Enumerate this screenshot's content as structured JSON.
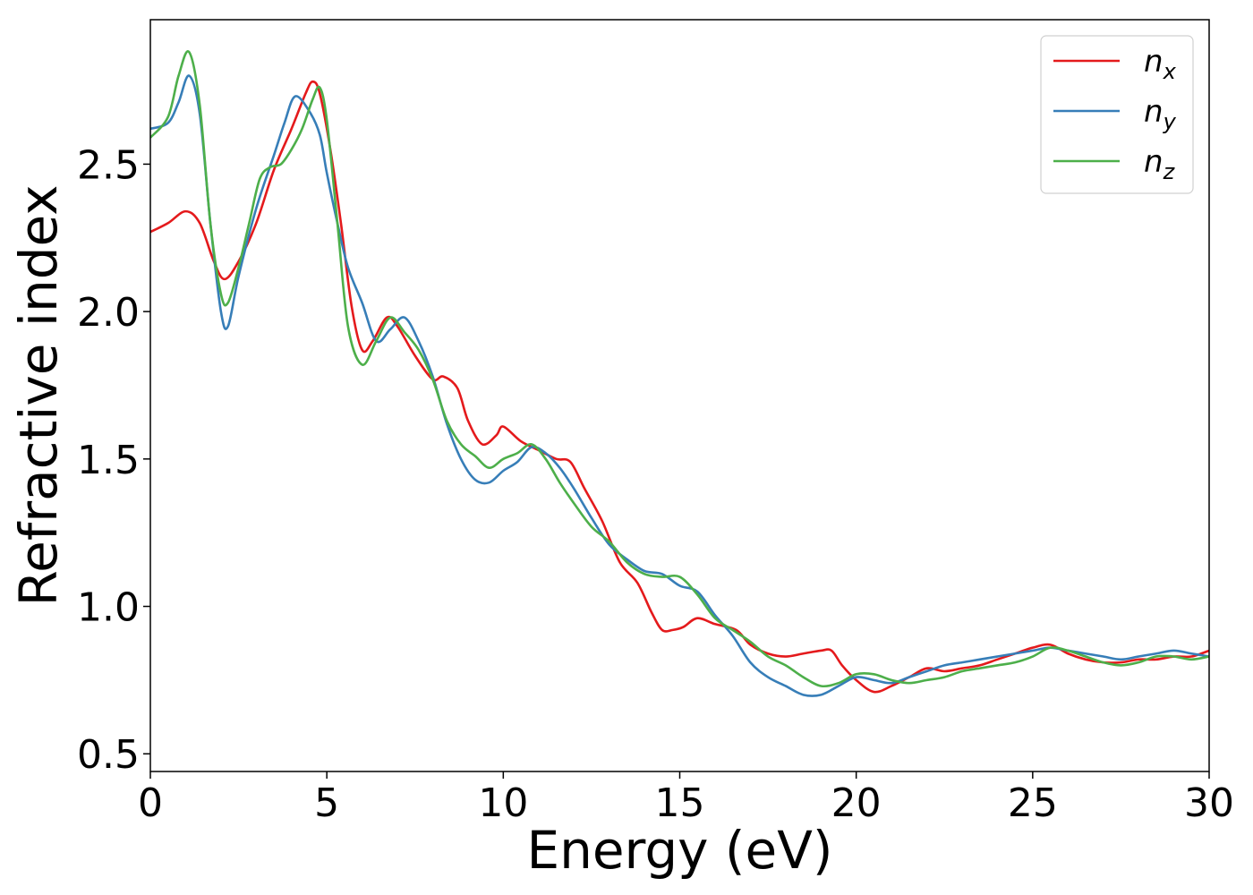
{
  "chart_data": {
    "type": "line",
    "xlabel": "Energy (eV)",
    "ylabel": "Refractive index",
    "xlim": [
      0,
      30
    ],
    "ylim": [
      0.44,
      2.99
    ],
    "xticks": [
      0,
      5,
      10,
      15,
      20,
      25,
      30
    ],
    "yticks": [
      0.5,
      1.0,
      1.5,
      2.0,
      2.5
    ],
    "xtick_labels": [
      "0",
      "5",
      "10",
      "15",
      "20",
      "25",
      "30"
    ],
    "ytick_labels": [
      "0.5",
      "1.0",
      "1.5",
      "2.0",
      "2.5"
    ],
    "grid": false,
    "legend_position": "top-right",
    "series": [
      {
        "name": "n",
        "subscript": "x",
        "color": "#e41a1c",
        "x": [
          0,
          0.5,
          1.0,
          1.4,
          1.8,
          2.1,
          2.5,
          3.0,
          3.5,
          4.0,
          4.4,
          4.6,
          4.8,
          5.1,
          5.4,
          5.7,
          6.0,
          6.3,
          6.7,
          7.0,
          7.5,
          8.0,
          8.3,
          8.7,
          9.0,
          9.4,
          9.8,
          10.0,
          10.5,
          11.0,
          11.5,
          11.9,
          12.3,
          12.8,
          13.3,
          13.8,
          14.2,
          14.5,
          14.8,
          15.1,
          15.5,
          16.0,
          16.6,
          17.0,
          17.5,
          18.0,
          18.5,
          19.0,
          19.3,
          19.6,
          20.0,
          20.5,
          21.0,
          21.5,
          22.0,
          22.5,
          23.0,
          23.5,
          24.0,
          24.5,
          25.0,
          25.5,
          26.0,
          26.5,
          27.0,
          27.5,
          28.0,
          28.5,
          29.0,
          29.5,
          30.0
        ],
        "y": [
          2.27,
          2.3,
          2.34,
          2.3,
          2.17,
          2.11,
          2.17,
          2.3,
          2.48,
          2.62,
          2.74,
          2.78,
          2.74,
          2.55,
          2.3,
          2.02,
          1.87,
          1.9,
          1.98,
          1.95,
          1.85,
          1.77,
          1.78,
          1.74,
          1.63,
          1.55,
          1.58,
          1.61,
          1.56,
          1.53,
          1.5,
          1.49,
          1.4,
          1.29,
          1.15,
          1.08,
          0.98,
          0.92,
          0.92,
          0.93,
          0.96,
          0.94,
          0.92,
          0.87,
          0.84,
          0.83,
          0.84,
          0.85,
          0.85,
          0.8,
          0.75,
          0.71,
          0.73,
          0.76,
          0.79,
          0.78,
          0.79,
          0.8,
          0.82,
          0.84,
          0.86,
          0.87,
          0.84,
          0.82,
          0.81,
          0.81,
          0.82,
          0.82,
          0.83,
          0.83,
          0.85
        ]
      },
      {
        "name": "n",
        "subscript": "y",
        "color": "#377eb8",
        "x": [
          0,
          0.5,
          0.8,
          1.1,
          1.4,
          1.7,
          2.0,
          2.2,
          2.5,
          3.0,
          3.5,
          3.8,
          4.1,
          4.5,
          4.8,
          5.0,
          5.3,
          5.6,
          6.0,
          6.4,
          6.8,
          7.2,
          7.6,
          8.0,
          8.4,
          8.8,
          9.2,
          9.6,
          10.0,
          10.4,
          10.8,
          11.2,
          11.6,
          12.0,
          12.5,
          13.0,
          13.5,
          14.0,
          14.5,
          15.0,
          15.5,
          16.0,
          16.5,
          17.0,
          17.5,
          18.0,
          18.5,
          19.0,
          19.5,
          20.0,
          20.5,
          21.0,
          21.5,
          22.0,
          22.5,
          23.0,
          23.5,
          24.0,
          24.5,
          25.0,
          25.5,
          26.0,
          26.5,
          27.0,
          27.5,
          28.0,
          28.5,
          29.0,
          29.5,
          30.0
        ],
        "y": [
          2.62,
          2.64,
          2.71,
          2.8,
          2.67,
          2.3,
          2.0,
          1.95,
          2.12,
          2.35,
          2.53,
          2.64,
          2.73,
          2.68,
          2.6,
          2.47,
          2.3,
          2.15,
          2.03,
          1.9,
          1.94,
          1.98,
          1.9,
          1.78,
          1.62,
          1.5,
          1.43,
          1.42,
          1.46,
          1.49,
          1.54,
          1.52,
          1.47,
          1.4,
          1.3,
          1.21,
          1.16,
          1.12,
          1.11,
          1.07,
          1.05,
          0.97,
          0.9,
          0.81,
          0.76,
          0.73,
          0.7,
          0.7,
          0.73,
          0.76,
          0.75,
          0.74,
          0.76,
          0.78,
          0.8,
          0.81,
          0.82,
          0.83,
          0.84,
          0.85,
          0.86,
          0.85,
          0.84,
          0.83,
          0.82,
          0.83,
          0.84,
          0.85,
          0.84,
          0.83
        ]
      },
      {
        "name": "n",
        "subscript": "z",
        "color": "#4daf4a",
        "x": [
          0,
          0.5,
          0.8,
          1.1,
          1.4,
          1.7,
          2.0,
          2.2,
          2.5,
          2.8,
          3.1,
          3.4,
          3.7,
          4.0,
          4.3,
          4.6,
          4.8,
          5.0,
          5.3,
          5.6,
          6.0,
          6.4,
          6.8,
          7.2,
          7.6,
          8.0,
          8.4,
          8.8,
          9.2,
          9.6,
          10.0,
          10.4,
          10.8,
          11.2,
          11.6,
          12.0,
          12.5,
          13.0,
          13.5,
          14.0,
          14.5,
          15.0,
          15.5,
          16.0,
          16.5,
          17.0,
          17.5,
          18.0,
          18.5,
          19.0,
          19.5,
          20.0,
          20.5,
          21.0,
          21.5,
          22.0,
          22.5,
          23.0,
          23.5,
          24.0,
          24.5,
          25.0,
          25.5,
          26.0,
          26.5,
          27.0,
          27.5,
          28.0,
          28.5,
          29.0,
          29.5,
          30.0
        ],
        "y": [
          2.59,
          2.66,
          2.8,
          2.88,
          2.7,
          2.3,
          2.06,
          2.03,
          2.15,
          2.3,
          2.45,
          2.49,
          2.5,
          2.55,
          2.62,
          2.72,
          2.76,
          2.65,
          2.3,
          1.95,
          1.82,
          1.9,
          1.98,
          1.93,
          1.87,
          1.77,
          1.63,
          1.55,
          1.51,
          1.47,
          1.5,
          1.52,
          1.55,
          1.5,
          1.42,
          1.35,
          1.27,
          1.22,
          1.15,
          1.11,
          1.1,
          1.1,
          1.04,
          0.96,
          0.92,
          0.88,
          0.83,
          0.8,
          0.76,
          0.73,
          0.74,
          0.77,
          0.77,
          0.75,
          0.74,
          0.75,
          0.76,
          0.78,
          0.79,
          0.8,
          0.81,
          0.83,
          0.86,
          0.85,
          0.83,
          0.81,
          0.8,
          0.81,
          0.83,
          0.83,
          0.82,
          0.83
        ]
      }
    ]
  }
}
